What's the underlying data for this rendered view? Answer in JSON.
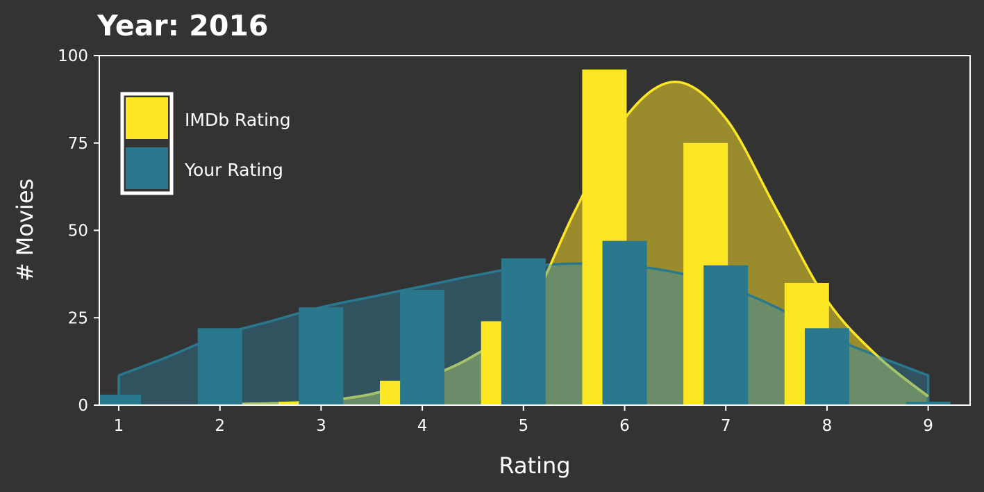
{
  "chart_data": {
    "type": "bar",
    "title": "Year: 2016",
    "xlabel": "Rating",
    "ylabel": "# Movies",
    "xlim": [
      0.8,
      9.42
    ],
    "ylim": [
      0,
      100
    ],
    "xticks": [
      1,
      2,
      3,
      4,
      5,
      6,
      7,
      8,
      9
    ],
    "yticks": [
      0,
      25,
      50,
      75,
      100
    ],
    "grid": false,
    "legend_position": "top-left",
    "series": [
      {
        "name": "IMDb Rating",
        "color": "#fde725",
        "bars": [
          {
            "x": 2.8,
            "value": 1
          },
          {
            "x": 3.8,
            "value": 7
          },
          {
            "x": 4.8,
            "value": 24
          },
          {
            "x": 5.8,
            "value": 96
          },
          {
            "x": 6.8,
            "value": 75
          },
          {
            "x": 7.8,
            "value": 35
          }
        ],
        "density_curve": {
          "x": [
            1.8,
            2.5,
            3.0,
            3.5,
            4.0,
            4.5,
            5.0,
            5.5,
            6.0,
            6.5,
            7.0,
            7.5,
            8.0,
            8.5,
            9.0
          ],
          "y": [
            0.2,
            0.5,
            1.2,
            3.2,
            7.5,
            14,
            25,
            55,
            82,
            92.5,
            82,
            56,
            30,
            14,
            2.5
          ],
          "color": "#fde725",
          "fill": "#9a8b2c"
        }
      },
      {
        "name": "Your Rating",
        "color": "#2a788e",
        "bars": [
          {
            "x": 1.0,
            "value": 3
          },
          {
            "x": 2.0,
            "value": 22
          },
          {
            "x": 3.0,
            "value": 28
          },
          {
            "x": 4.0,
            "value": 33
          },
          {
            "x": 5.0,
            "value": 42
          },
          {
            "x": 6.0,
            "value": 47
          },
          {
            "x": 7.0,
            "value": 40
          },
          {
            "x": 8.0,
            "value": 22
          },
          {
            "x": 9.0,
            "value": 1
          }
        ],
        "density_curve": {
          "x": [
            1.0,
            1.5,
            2.0,
            2.5,
            3.0,
            3.5,
            4.0,
            4.5,
            5.0,
            5.5,
            6.0,
            6.5,
            7.0,
            7.5,
            8.0,
            8.5,
            9.0
          ],
          "y": [
            8.5,
            14,
            20,
            24,
            28,
            31,
            34,
            37,
            39.5,
            40.5,
            40,
            38,
            34,
            28,
            20,
            14,
            8.5
          ],
          "color": "#2a788e",
          "fill": "#30535f"
        }
      }
    ]
  },
  "colors": {
    "background": "#333333",
    "foreground": "#ffffff",
    "overlap_fill": "#6b8c68",
    "overlap_line": "#a3c46c"
  }
}
